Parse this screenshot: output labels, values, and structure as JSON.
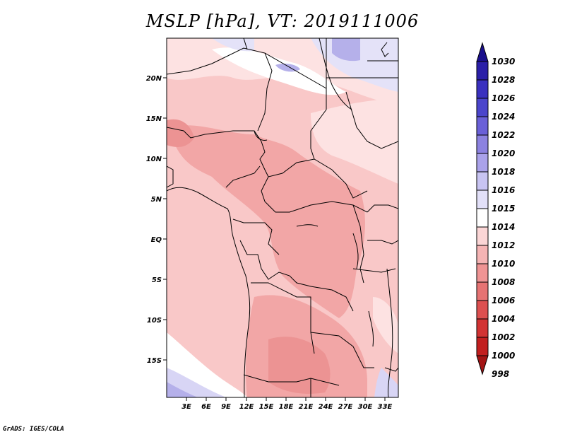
{
  "title": "MSLP [hPa], VT: 2019111006",
  "footer": "GrADS: IGES/COLA",
  "map": {
    "lat_labels": [
      "20N",
      "15N",
      "10N",
      "5N",
      "EQ",
      "5S",
      "10S",
      "15S"
    ],
    "lon_labels": [
      "3E",
      "6E",
      "9E",
      "12E",
      "15E",
      "18E",
      "21E",
      "24E",
      "27E",
      "30E",
      "33E"
    ]
  },
  "colorbar": {
    "levels": [
      "1030",
      "1028",
      "1026",
      "1024",
      "1022",
      "1020",
      "1018",
      "1016",
      "1015",
      "1014",
      "1012",
      "1010",
      "1008",
      "1006",
      "1004",
      "1002",
      "1000",
      "998"
    ],
    "colors": [
      "#1a0f8c",
      "#2a1fa8",
      "#3a30bf",
      "#4b45cc",
      "#6a60d8",
      "#8c82e0",
      "#aaa2ea",
      "#c8c4f2",
      "#e2e0f8",
      "#ffffff",
      "#fbd6d6",
      "#f5b4b4",
      "#ef9494",
      "#e67373",
      "#dd5050",
      "#d23333",
      "#c21f1f",
      "#a31414"
    ]
  }
}
